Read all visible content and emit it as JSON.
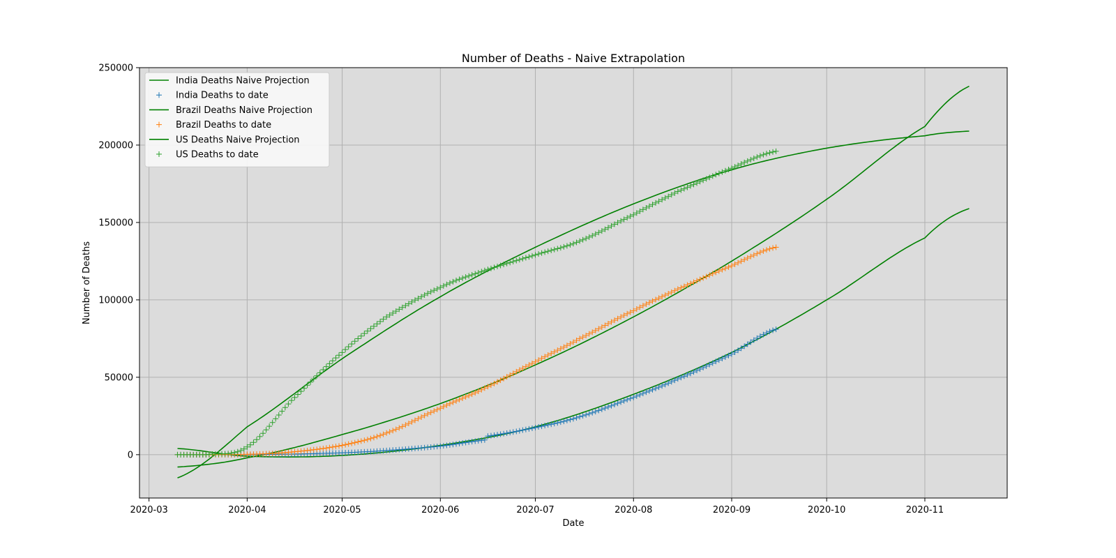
{
  "chart_data": {
    "type": "line",
    "title": "Number of Deaths - Naive Extrapolation",
    "xlabel": "Date",
    "ylabel": "Number of Deaths",
    "x_range": [
      "2020-02-27",
      "2020-11-27"
    ],
    "ylim": [
      -28000,
      250000
    ],
    "x_ticks": [
      "2020-03",
      "2020-04",
      "2020-05",
      "2020-06",
      "2020-07",
      "2020-08",
      "2020-09",
      "2020-10",
      "2020-11"
    ],
    "y_ticks": [
      0,
      50000,
      100000,
      150000,
      200000,
      250000
    ],
    "grid": true,
    "plot_background": "#dcdcdc",
    "legend_position": "upper-left",
    "colors": {
      "projection": "#008000",
      "india": "#1f77b4",
      "brazil": "#ff7f0e",
      "us": "#2ca02c"
    },
    "projections": [
      {
        "name": "India Deaths Naive Projection",
        "x": [
          "2020-03-10",
          "2020-04-01",
          "2020-05-01",
          "2020-06-01",
          "2020-07-01",
          "2020-08-01",
          "2020-09-01",
          "2020-10-01",
          "2020-11-01",
          "2020-11-15"
        ],
        "y": [
          4000,
          -1000,
          -500,
          6000,
          18000,
          39000,
          66000,
          100000,
          140000,
          159000
        ]
      },
      {
        "name": "Brazil Deaths Naive Projection",
        "x": [
          "2020-03-10",
          "2020-04-01",
          "2020-05-01",
          "2020-06-01",
          "2020-07-01",
          "2020-08-01",
          "2020-09-01",
          "2020-10-01",
          "2020-11-01",
          "2020-11-15"
        ],
        "y": [
          -8000,
          -2000,
          13000,
          33000,
          58000,
          89000,
          125000,
          165000,
          212000,
          238000
        ]
      },
      {
        "name": "US Deaths Naive Projection",
        "x": [
          "2020-03-10",
          "2020-04-01",
          "2020-05-01",
          "2020-06-01",
          "2020-07-01",
          "2020-08-01",
          "2020-09-01",
          "2020-10-01",
          "2020-11-01",
          "2020-11-15"
        ],
        "y": [
          -15000,
          18000,
          62000,
          102000,
          134000,
          162000,
          184000,
          198000,
          206000,
          209000
        ]
      }
    ],
    "observed": [
      {
        "name": "India Deaths to date",
        "x": [
          "2020-03-10",
          "2020-04-01",
          "2020-04-15",
          "2020-05-01",
          "2020-05-15",
          "2020-06-01",
          "2020-06-15",
          "2020-06-16",
          "2020-07-01",
          "2020-07-15",
          "2020-08-01",
          "2020-08-15",
          "2020-09-01",
          "2020-09-15"
        ],
        "y": [
          0,
          50,
          400,
          1200,
          2700,
          5500,
          9500,
          12000,
          17500,
          24500,
          37000,
          49000,
          65000,
          81000
        ]
      },
      {
        "name": "Brazil Deaths to date",
        "x": [
          "2020-03-10",
          "2020-04-01",
          "2020-04-15",
          "2020-05-01",
          "2020-05-15",
          "2020-06-01",
          "2020-06-15",
          "2020-07-01",
          "2020-07-15",
          "2020-08-01",
          "2020-08-15",
          "2020-09-01",
          "2020-09-15"
        ],
        "y": [
          0,
          200,
          1700,
          6000,
          14000,
          30000,
          43000,
          60000,
          75000,
          93000,
          107000,
          122000,
          134000
        ]
      },
      {
        "name": "US Deaths to date",
        "x": [
          "2020-03-10",
          "2020-03-20",
          "2020-04-01",
          "2020-04-15",
          "2020-05-01",
          "2020-05-15",
          "2020-06-01",
          "2020-06-15",
          "2020-07-01",
          "2020-07-15",
          "2020-08-01",
          "2020-08-15",
          "2020-09-01",
          "2020-09-15"
        ],
        "y": [
          0,
          200,
          5000,
          35000,
          66000,
          89000,
          108000,
          119000,
          129000,
          138000,
          155000,
          170000,
          185000,
          196000
        ]
      }
    ]
  }
}
